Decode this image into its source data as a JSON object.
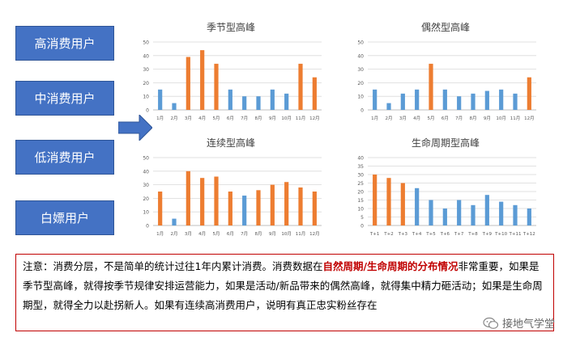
{
  "segments": [
    "高消费用户",
    "中消费用户",
    "低消费用户",
    "白嫖用户"
  ],
  "colors": {
    "blue": "#5b9bd5",
    "orange": "#ed7d31",
    "segment_box": "#4472c4",
    "highlight": "#c00000"
  },
  "chart_data": [
    {
      "type": "bar",
      "title": "季节型高峰",
      "categories": [
        "1月",
        "2月",
        "3月",
        "4月",
        "5月",
        "6月",
        "7月",
        "8月",
        "9月",
        "10月",
        "11月",
        "12月"
      ],
      "values": [
        15,
        5,
        39,
        44,
        34,
        15,
        10,
        10,
        15,
        12,
        34,
        24
      ],
      "colors": [
        "blue",
        "blue",
        "orange",
        "orange",
        "orange",
        "blue",
        "blue",
        "blue",
        "blue",
        "blue",
        "orange",
        "orange"
      ],
      "ylim": [
        0,
        50
      ],
      "yticks": [
        0,
        10,
        20,
        30,
        40,
        50
      ],
      "grid": true
    },
    {
      "type": "bar",
      "title": "偶然型高峰",
      "categories": [
        "1月",
        "2月",
        "3月",
        "4月",
        "5月",
        "6月",
        "7月",
        "8月",
        "9月",
        "10月",
        "11月",
        "12月"
      ],
      "values": [
        15,
        5,
        12,
        15,
        34,
        15,
        10,
        12,
        14,
        15,
        12,
        24
      ],
      "colors": [
        "blue",
        "blue",
        "blue",
        "blue",
        "orange",
        "blue",
        "blue",
        "blue",
        "blue",
        "blue",
        "blue",
        "orange"
      ],
      "ylim": [
        0,
        50
      ],
      "yticks": [
        0,
        10,
        20,
        30,
        40,
        50
      ],
      "grid": true
    },
    {
      "type": "bar",
      "title": "连续型高峰",
      "categories": [
        "1月",
        "2月",
        "3月",
        "4月",
        "5月",
        "6月",
        "7月",
        "8月",
        "9月",
        "10月",
        "11月",
        "12月"
      ],
      "values": [
        25,
        5,
        40,
        35,
        36,
        25,
        22,
        26,
        30,
        32,
        28,
        25
      ],
      "colors": [
        "orange",
        "blue",
        "orange",
        "orange",
        "orange",
        "orange",
        "blue",
        "orange",
        "orange",
        "orange",
        "orange",
        "orange"
      ],
      "ylim": [
        0,
        50
      ],
      "yticks": [
        0,
        10,
        20,
        30,
        40,
        50
      ],
      "grid": true
    },
    {
      "type": "bar",
      "title": "生命周期型高峰",
      "categories": [
        "T+1",
        "T+2",
        "T+3",
        "T+4",
        "T+5",
        "T+6",
        "T+7",
        "T+8",
        "T+9",
        "T+10",
        "T+11",
        "T+12"
      ],
      "values": [
        30,
        28,
        25,
        22,
        15,
        10,
        15,
        12,
        18,
        14,
        12,
        10
      ],
      "colors": [
        "orange",
        "orange",
        "orange",
        "blue",
        "blue",
        "blue",
        "blue",
        "blue",
        "blue",
        "blue",
        "blue",
        "blue"
      ],
      "ylim": [
        0,
        40
      ],
      "yticks": [
        0,
        5,
        10,
        15,
        20,
        25,
        30,
        35,
        40
      ],
      "grid": true
    }
  ],
  "note": {
    "part1": "注意：消费分层，不是简单的统计过往1年内累计消费。消费数据在",
    "highlight": "自然周期/生命周期的分布情况",
    "part2": "非常重要，如果是季节型高峰，就得按季节规律安排运营能力，如果是活动/新品带来的偶然高峰，就得集中精力砸活动；如果是生命周期型，就得全力以赴拐新人。如果有连续高消费用户，说明有真正忠实粉丝存在"
  },
  "watermark": "接地气学堂"
}
